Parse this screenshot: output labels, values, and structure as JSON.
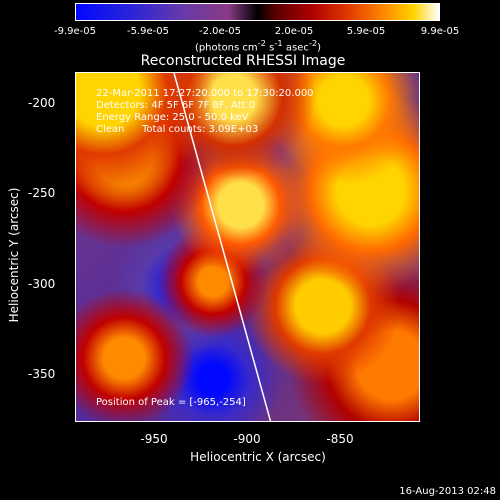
{
  "colorbar": {
    "ticks": [
      "-9.9e-05",
      "-5.9e-05",
      "-2.0e-05",
      "2.0e-05",
      "5.9e-05",
      "9.9e-05"
    ],
    "unit_prefix": "(photons cm",
    "unit_exp1": "-2",
    "unit_mid": " s",
    "unit_exp2": "-1",
    "unit_suffix": " asec",
    "unit_exp3": "-2",
    "unit_close": ")"
  },
  "title": "Reconstructed RHESSI Image",
  "info": {
    "line1": "22-Mar-2011 17:27:20.000 to 17:30:20.000",
    "line2": "Detectors: 4F 5F 6F 7F 8F, Att 0",
    "line3": "Energy Range: 25.0 - 50.0 keV",
    "line4_a": "Clean",
    "line4_b": "Total counts: 3.09E+03",
    "peak": "Position of Peak = [-965,-254]"
  },
  "axes": {
    "xlabel": "Heliocentric X (arcsec)",
    "ylabel": "Heliocentric Y (arcsec)",
    "xticks": [
      "-950",
      "-900",
      "-850"
    ],
    "yticks": [
      "-200",
      "-250",
      "-300",
      "-350"
    ]
  },
  "footer_date": "16-Aug-2013 02:48",
  "colors": {
    "background": "#000000",
    "frame": "#ffffff",
    "hot": "#ffd400",
    "cold": "#0008ff"
  }
}
